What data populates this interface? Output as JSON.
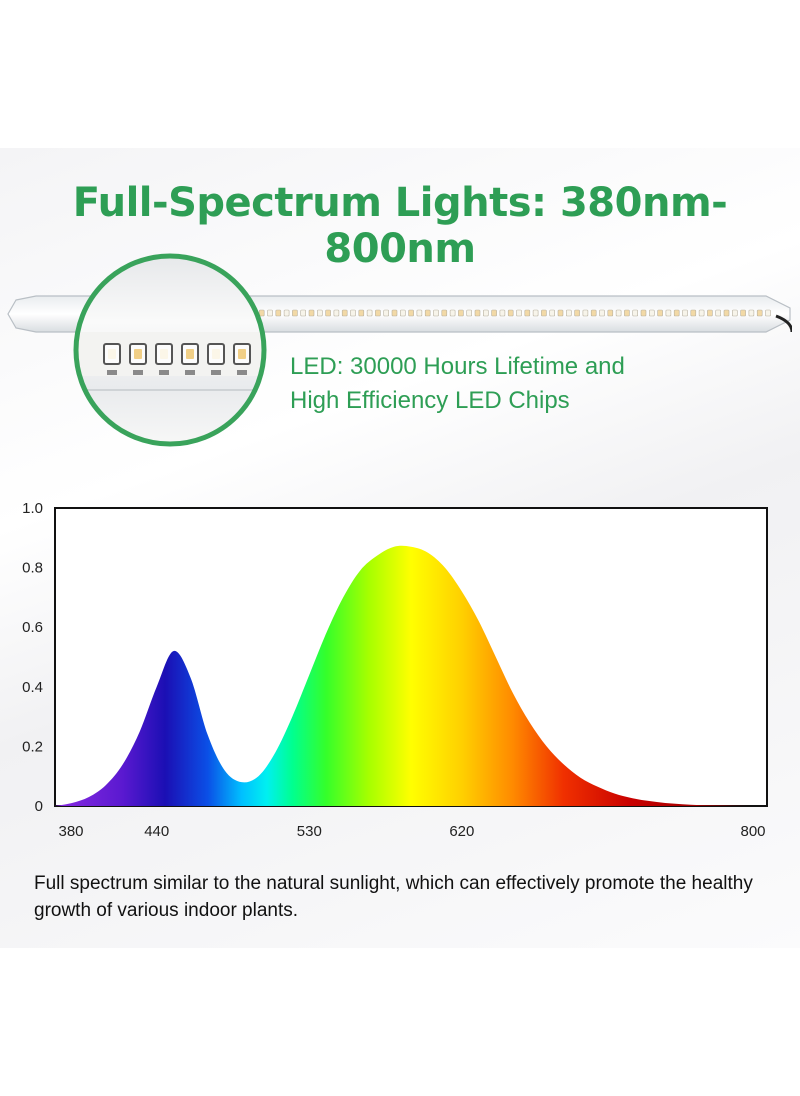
{
  "headline": "Full-Spectrum Lights: 380nm-800nm",
  "callout": {
    "line1": "LED: 30000 Hours Lifetime and",
    "line2": "High Efficiency LED Chips"
  },
  "caption": "Full spectrum similar to the natural sunlight, which can effectively promote the healthy growth of various indoor plants.",
  "colors": {
    "accent_green": "#2e9e55",
    "chart_border": "#111111"
  },
  "chart_data": {
    "type": "area",
    "title": "",
    "xlabel": "",
    "ylabel": "",
    "xlim": [
      380,
      800
    ],
    "ylim": [
      0,
      1.0
    ],
    "x_ticks": [
      380,
      440,
      530,
      620,
      800
    ],
    "x_tick_labels": [
      "380",
      "440",
      "530",
      "620",
      "800"
    ],
    "y_ticks": [
      0,
      0.2,
      0.4,
      0.6,
      0.8,
      1.0
    ],
    "y_tick_labels": [
      "0",
      "0.2",
      "0.4",
      "0.6",
      "0.8",
      "1.0"
    ],
    "grid": false,
    "series": [
      {
        "x": [
          380,
          390,
          400,
          410,
          420,
          430,
          440,
          450,
          460,
          470,
          480,
          490,
          500,
          510,
          520,
          530,
          540,
          550,
          560,
          570,
          580,
          590,
          600,
          610,
          620,
          630,
          640,
          650,
          660,
          670,
          680,
          690,
          700,
          710,
          720,
          730,
          740,
          750,
          760,
          770,
          780,
          790,
          800
        ],
        "y": [
          0.0,
          0.01,
          0.03,
          0.07,
          0.14,
          0.25,
          0.4,
          0.52,
          0.43,
          0.24,
          0.12,
          0.08,
          0.1,
          0.18,
          0.3,
          0.44,
          0.58,
          0.7,
          0.79,
          0.84,
          0.87,
          0.87,
          0.85,
          0.8,
          0.72,
          0.62,
          0.5,
          0.38,
          0.28,
          0.2,
          0.14,
          0.095,
          0.065,
          0.042,
          0.027,
          0.017,
          0.01,
          0.006,
          0.003,
          0.002,
          0.001,
          0.0,
          0.0
        ]
      }
    ]
  }
}
